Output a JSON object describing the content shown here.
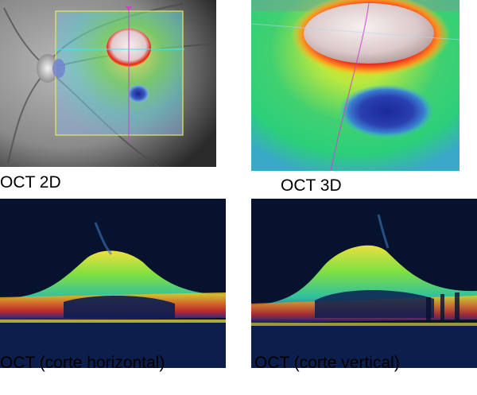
{
  "panels": [
    {
      "caption": "OCT 2D",
      "image": "fundus-photo-with-thickness-overlay"
    },
    {
      "caption": "OCT 3D",
      "image": "3d-retinal-thickness-map"
    },
    {
      "caption": "OCT (corte horizontal)",
      "image": "horizontal-oct-b-scan"
    },
    {
      "caption": "OCT (corte vertical)",
      "image": "vertical-oct-b-scan"
    }
  ],
  "colors": {
    "thin": "#1b2a9a",
    "normal": "#2fd07a",
    "thick": "#ffd21a",
    "very_thick": "#e8241a",
    "cyst": "#eadfe0",
    "scan_background": "#06122e",
    "grid_frame": "#e8e860",
    "scan_line": "#d040d0"
  }
}
